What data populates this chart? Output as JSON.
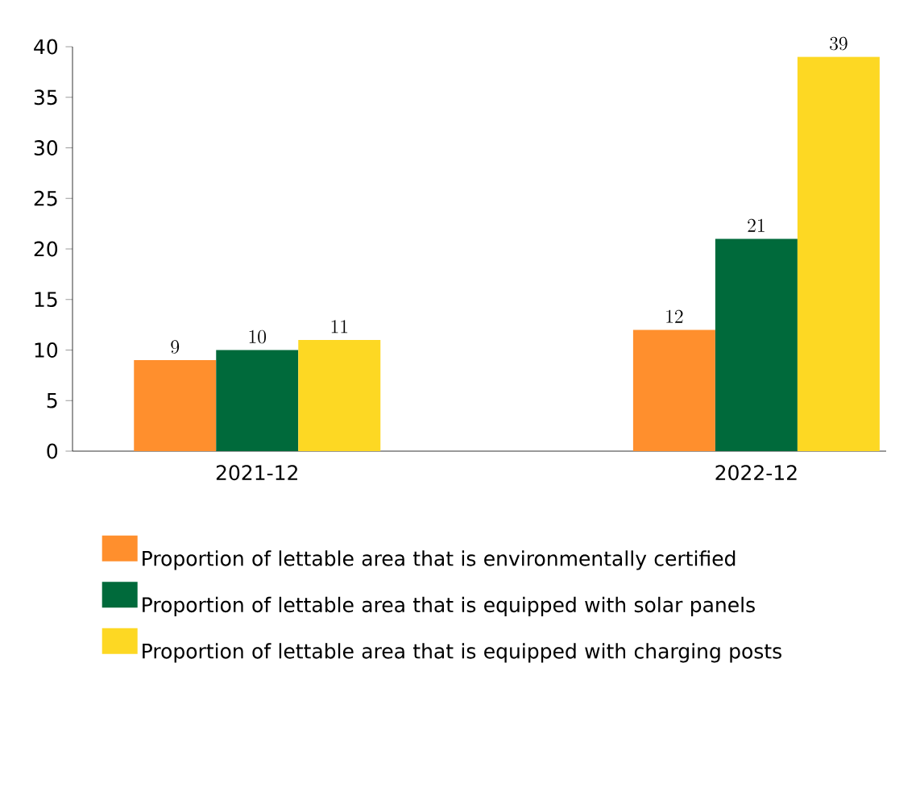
{
  "chart_data": {
    "type": "bar",
    "categories": [
      "2021-12",
      "2022-12"
    ],
    "series": [
      {
        "name": "Proportion of lettable area that is environmentally certified",
        "color": "#ff8f2d",
        "values": [
          9,
          12
        ]
      },
      {
        "name": "Proportion of lettable area that is equipped with solar panels",
        "color": "#006a3b",
        "values": [
          10,
          21
        ]
      },
      {
        "name": "Proportion of lettable area that is equipped with charging posts",
        "color": "#fdd823",
        "values": [
          11,
          39
        ]
      }
    ],
    "ylim": [
      0,
      40
    ],
    "yticks": [
      0,
      5,
      10,
      15,
      20,
      25,
      30,
      35,
      40
    ],
    "data_labels": true,
    "legend": "bottom",
    "grid": false
  }
}
